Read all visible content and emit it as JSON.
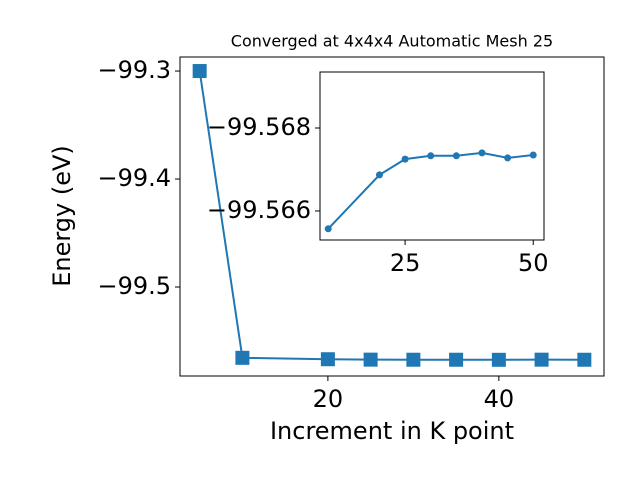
{
  "chart_data": [
    {
      "type": "line",
      "title": "Converged at 4x4x4 Automatic Mesh 25",
      "x_label": "Increment in K point",
      "y_label": "Energy (eV)",
      "marker": "square",
      "color": "#1f77b4",
      "x": [
        5,
        10,
        20,
        25,
        30,
        35,
        40,
        45,
        50
      ],
      "values": [
        -99.3,
        -99.56557,
        -99.56687,
        -99.56725,
        -99.56733,
        -99.56733,
        -99.5674,
        -99.56728,
        -99.56735
      ],
      "xlim": [
        2.7,
        52.3
      ],
      "ylim": [
        -99.5824,
        -99.287
      ],
      "xticks": [
        20,
        40
      ],
      "yticks": [
        {
          "value": -99.3,
          "label": "−99.3"
        },
        {
          "value": -99.4,
          "label": "−99.4"
        },
        {
          "value": -99.5,
          "label": "−99.5"
        }
      ]
    },
    {
      "type": "line",
      "marker": "circle",
      "color": "#1f77b4",
      "x": [
        10,
        20,
        25,
        30,
        35,
        40,
        45,
        50
      ],
      "values": [
        -99.56557,
        -99.56687,
        -99.56725,
        -99.56733,
        -99.56733,
        -99.5674,
        -99.56728,
        -99.56735
      ],
      "xlim": [
        8.4,
        52.1
      ],
      "ylim": [
        -99.5653,
        -99.56935
      ],
      "xticks": [
        25,
        50
      ],
      "yticks": [
        {
          "value": -99.568,
          "label": "−99.568"
        },
        {
          "value": -99.566,
          "label": "−99.566"
        }
      ]
    }
  ]
}
